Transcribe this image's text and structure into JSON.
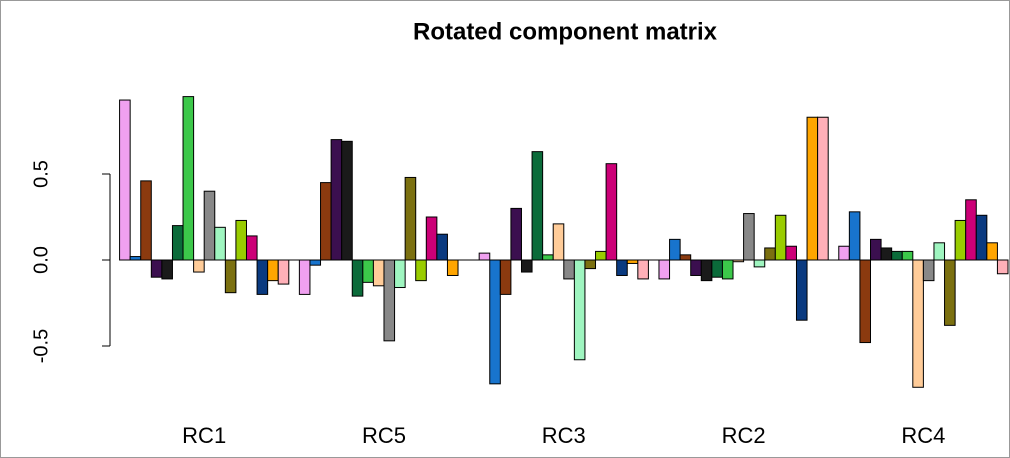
{
  "chart_data": {
    "type": "bar",
    "title": "Rotated component matrix",
    "categories": [
      "RC1",
      "RC5",
      "RC3",
      "RC2",
      "RC4"
    ],
    "series": [
      {
        "color": "#f0a0f0",
        "values": [
          0.93,
          -0.2,
          0.04,
          -0.11,
          0.08
        ]
      },
      {
        "color": "#1874cd",
        "values": [
          0.02,
          -0.03,
          -0.72,
          0.12,
          0.28
        ]
      },
      {
        "color": "#8b3a0f",
        "values": [
          0.46,
          0.45,
          -0.2,
          0.03,
          -0.48
        ]
      },
      {
        "color": "#3b0f4f",
        "values": [
          -0.1,
          0.7,
          0.3,
          -0.09,
          0.12
        ]
      },
      {
        "color": "#1a1a1a",
        "values": [
          -0.11,
          0.69,
          -0.07,
          -0.12,
          0.07
        ]
      },
      {
        "color": "#0b6b3a",
        "values": [
          0.2,
          -0.21,
          0.63,
          -0.1,
          0.05
        ]
      },
      {
        "color": "#3cc84a",
        "values": [
          0.95,
          -0.13,
          0.03,
          -0.11,
          0.05
        ]
      },
      {
        "color": "#ffcc99",
        "values": [
          -0.07,
          -0.15,
          0.21,
          -0.01,
          -0.74
        ]
      },
      {
        "color": "#888888",
        "values": [
          0.4,
          -0.47,
          -0.11,
          0.27,
          -0.12
        ]
      },
      {
        "color": "#9ff5c0",
        "values": [
          0.19,
          -0.16,
          -0.58,
          -0.04,
          0.1
        ]
      },
      {
        "color": "#7b7010",
        "values": [
          -0.19,
          0.48,
          -0.05,
          0.07,
          -0.38
        ]
      },
      {
        "color": "#99cc00",
        "values": [
          0.23,
          -0.12,
          0.05,
          0.26,
          0.23
        ]
      },
      {
        "color": "#cc0077",
        "values": [
          0.14,
          0.25,
          0.56,
          0.08,
          0.35
        ]
      },
      {
        "color": "#0a3a80",
        "values": [
          -0.2,
          0.15,
          -0.09,
          -0.35,
          0.26
        ]
      },
      {
        "color": "#ffa500",
        "values": [
          -0.12,
          -0.09,
          -0.02,
          0.83,
          0.1
        ]
      },
      {
        "color": "#ffb0b8",
        "values": [
          -0.14,
          0,
          -0.11,
          0.83,
          -0.08
        ]
      }
    ],
    "ylim": [
      -0.8,
      1.0
    ],
    "yticks": [
      {
        "value": -0.5,
        "label": "-0.5"
      },
      {
        "value": 0,
        "label": "0.0"
      },
      {
        "value": 0.5,
        "label": "0.5"
      }
    ]
  }
}
